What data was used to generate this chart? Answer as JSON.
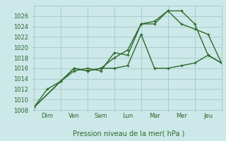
{
  "title": "Pression niveau de la mer( hPa )",
  "bg_color": "#cce8e8",
  "grid_color": "#aacccc",
  "line_color": "#2d6a2d",
  "ylim": [
    1008,
    1028
  ],
  "yticks": [
    1008,
    1010,
    1012,
    1014,
    1016,
    1018,
    1020,
    1022,
    1024,
    1026
  ],
  "days": [
    "Dim",
    "Ven",
    "Sam",
    "Lun",
    "Mar",
    "Mer",
    "Jeu"
  ],
  "xlim": [
    0,
    7
  ],
  "series1_x": [
    0,
    1,
    1.5,
    2,
    2.5,
    3,
    3.5,
    4,
    4.5,
    5,
    5.5,
    6,
    6.5,
    7
  ],
  "series1_y": [
    1008.5,
    1013.5,
    1015.5,
    1016.0,
    1015.5,
    1019.0,
    1018.5,
    1024.5,
    1024.5,
    1027.0,
    1027.0,
    1024.5,
    1018.5,
    1017.0
  ],
  "series2_x": [
    0,
    0.5,
    1,
    1.5,
    2,
    2.5,
    3,
    3.5,
    4,
    4.5,
    5,
    5.5,
    6,
    6.5,
    7
  ],
  "series2_y": [
    1008.5,
    1012.0,
    1013.5,
    1016.0,
    1015.5,
    1016.0,
    1016.0,
    1016.5,
    1022.5,
    1016.0,
    1016.0,
    1016.5,
    1017.0,
    1018.5,
    1017.0
  ],
  "series3_x": [
    0,
    1,
    1.5,
    2,
    2.5,
    3,
    3.5,
    4,
    4.5,
    5,
    5.5,
    6,
    6.5,
    7
  ],
  "series3_y": [
    1008.5,
    1013.5,
    1016.0,
    1015.5,
    1016.0,
    1018.0,
    1019.5,
    1024.5,
    1025.0,
    1027.0,
    1024.5,
    1023.5,
    1022.5,
    1017.0
  ]
}
